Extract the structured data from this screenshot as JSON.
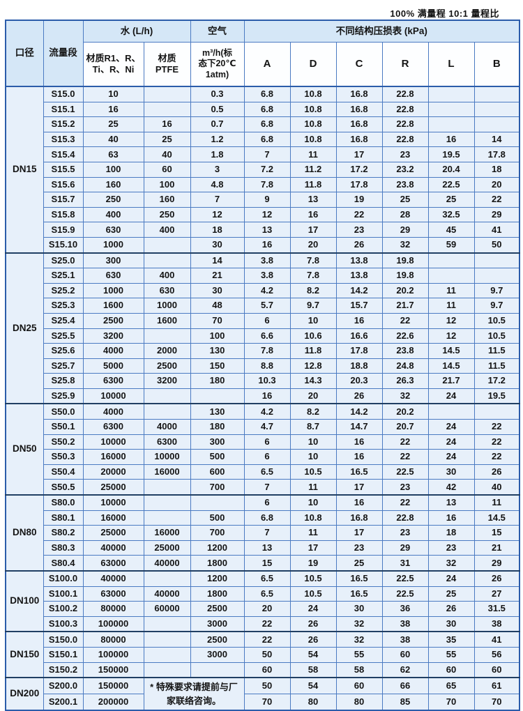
{
  "page": {
    "top_note": "100% 满量程  10:1 量程比"
  },
  "table": {
    "headers": {
      "diameter": "口径",
      "flow_segment": "流量段",
      "water_group": "水 (L/h)",
      "water_material_1": "材质R1、R、\nTi、R、Ni",
      "water_material_2": "材质\nPTFE",
      "air_group": "空气",
      "air_sub": "m³/h(标\n态下20℃\n1atm)",
      "pressure_group": "不同结构压损表  (kPa)",
      "pressure_cols": [
        "A",
        "D",
        "C",
        "R",
        "L",
        "B"
      ]
    },
    "note": "* 特殊要求请提前与厂家联络咨询。",
    "groups": [
      {
        "diameter": "DN15",
        "rows": [
          {
            "seg": "S15.0",
            "w1": "10",
            "w2": "",
            "air": "0.3",
            "kpa": [
              "6.8",
              "10.8",
              "16.8",
              "22.8",
              "",
              ""
            ]
          },
          {
            "seg": "S15.1",
            "w1": "16",
            "w2": "",
            "air": "0.5",
            "kpa": [
              "6.8",
              "10.8",
              "16.8",
              "22.8",
              "",
              ""
            ]
          },
          {
            "seg": "S15.2",
            "w1": "25",
            "w2": "16",
            "air": "0.7",
            "kpa": [
              "6.8",
              "10.8",
              "16.8",
              "22.8",
              "",
              ""
            ]
          },
          {
            "seg": "S15.3",
            "w1": "40",
            "w2": "25",
            "air": "1.2",
            "kpa": [
              "6.8",
              "10.8",
              "16.8",
              "22.8",
              "16",
              "14"
            ]
          },
          {
            "seg": "S15.4",
            "w1": "63",
            "w2": "40",
            "air": "1.8",
            "kpa": [
              "7",
              "11",
              "17",
              "23",
              "19.5",
              "17.8"
            ]
          },
          {
            "seg": "S15.5",
            "w1": "100",
            "w2": "60",
            "air": "3",
            "kpa": [
              "7.2",
              "11.2",
              "17.2",
              "23.2",
              "20.4",
              "18"
            ]
          },
          {
            "seg": "S15.6",
            "w1": "160",
            "w2": "100",
            "air": "4.8",
            "kpa": [
              "7.8",
              "11.8",
              "17.8",
              "23.8",
              "22.5",
              "20"
            ]
          },
          {
            "seg": "S15.7",
            "w1": "250",
            "w2": "160",
            "air": "7",
            "kpa": [
              "9",
              "13",
              "19",
              "25",
              "25",
              "22"
            ]
          },
          {
            "seg": "S15.8",
            "w1": "400",
            "w2": "250",
            "air": "12",
            "kpa": [
              "12",
              "16",
              "22",
              "28",
              "32.5",
              "29"
            ]
          },
          {
            "seg": "S15.9",
            "w1": "630",
            "w2": "400",
            "air": "18",
            "kpa": [
              "13",
              "17",
              "23",
              "29",
              "45",
              "41"
            ]
          },
          {
            "seg": "S15.10",
            "w1": "1000",
            "w2": "",
            "air": "30",
            "kpa": [
              "16",
              "20",
              "26",
              "32",
              "59",
              "50"
            ]
          }
        ]
      },
      {
        "diameter": "DN25",
        "rows": [
          {
            "seg": "S25.0",
            "w1": "300",
            "w2": "",
            "air": "14",
            "kpa": [
              "3.8",
              "7.8",
              "13.8",
              "19.8",
              "",
              ""
            ]
          },
          {
            "seg": "S25.1",
            "w1": "630",
            "w2": "400",
            "air": "21",
            "kpa": [
              "3.8",
              "7.8",
              "13.8",
              "19.8",
              "",
              ""
            ]
          },
          {
            "seg": "S25.2",
            "w1": "1000",
            "w2": "630",
            "air": "30",
            "kpa": [
              "4.2",
              "8.2",
              "14.2",
              "20.2",
              "11",
              "9.7"
            ]
          },
          {
            "seg": "S25.3",
            "w1": "1600",
            "w2": "1000",
            "air": "48",
            "kpa": [
              "5.7",
              "9.7",
              "15.7",
              "21.7",
              "11",
              "9.7"
            ]
          },
          {
            "seg": "S25.4",
            "w1": "2500",
            "w2": "1600",
            "air": "70",
            "kpa": [
              "6",
              "10",
              "16",
              "22",
              "12",
              "10.5"
            ]
          },
          {
            "seg": "S25.5",
            "w1": "3200",
            "w2": "",
            "air": "100",
            "kpa": [
              "6.6",
              "10.6",
              "16.6",
              "22.6",
              "12",
              "10.5"
            ]
          },
          {
            "seg": "S25.6",
            "w1": "4000",
            "w2": "2000",
            "air": "130",
            "kpa": [
              "7.8",
              "11.8",
              "17.8",
              "23.8",
              "14.5",
              "11.5"
            ]
          },
          {
            "seg": "S25.7",
            "w1": "5000",
            "w2": "2500",
            "air": "150",
            "kpa": [
              "8.8",
              "12.8",
              "18.8",
              "24.8",
              "14.5",
              "11.5"
            ]
          },
          {
            "seg": "S25.8",
            "w1": "6300",
            "w2": "3200",
            "air": "180",
            "kpa": [
              "10.3",
              "14.3",
              "20.3",
              "26.3",
              "21.7",
              "17.2"
            ]
          },
          {
            "seg": "S25.9",
            "w1": "10000",
            "w2": "",
            "air": "",
            "kpa": [
              "16",
              "20",
              "26",
              "32",
              "24",
              "19.5"
            ]
          }
        ]
      },
      {
        "diameter": "DN50",
        "rows": [
          {
            "seg": "S50.0",
            "w1": "4000",
            "w2": "",
            "air": "130",
            "kpa": [
              "4.2",
              "8.2",
              "14.2",
              "20.2",
              "",
              ""
            ]
          },
          {
            "seg": "S50.1",
            "w1": "6300",
            "w2": "4000",
            "air": "180",
            "kpa": [
              "4.7",
              "8.7",
              "14.7",
              "20.7",
              "24",
              "22"
            ]
          },
          {
            "seg": "S50.2",
            "w1": "10000",
            "w2": "6300",
            "air": "300",
            "kpa": [
              "6",
              "10",
              "16",
              "22",
              "24",
              "22"
            ]
          },
          {
            "seg": "S50.3",
            "w1": "16000",
            "w2": "10000",
            "air": "500",
            "kpa": [
              "6",
              "10",
              "16",
              "22",
              "24",
              "22"
            ]
          },
          {
            "seg": "S50.4",
            "w1": "20000",
            "w2": "16000",
            "air": "600",
            "kpa": [
              "6.5",
              "10.5",
              "16.5",
              "22.5",
              "30",
              "26"
            ]
          },
          {
            "seg": "S50.5",
            "w1": "25000",
            "w2": "",
            "air": "700",
            "kpa": [
              "7",
              "11",
              "17",
              "23",
              "42",
              "40"
            ]
          }
        ]
      },
      {
        "diameter": "DN80",
        "rows": [
          {
            "seg": "S80.0",
            "w1": "10000",
            "w2": "",
            "air": "",
            "kpa": [
              "6",
              "10",
              "16",
              "22",
              "13",
              "11"
            ]
          },
          {
            "seg": "S80.1",
            "w1": "16000",
            "w2": "",
            "air": "500",
            "kpa": [
              "6.8",
              "10.8",
              "16.8",
              "22.8",
              "16",
              "14.5"
            ]
          },
          {
            "seg": "S80.2",
            "w1": "25000",
            "w2": "16000",
            "air": "700",
            "kpa": [
              "7",
              "11",
              "17",
              "23",
              "18",
              "15"
            ]
          },
          {
            "seg": "S80.3",
            "w1": "40000",
            "w2": "25000",
            "air": "1200",
            "kpa": [
              "13",
              "17",
              "23",
              "29",
              "23",
              "21"
            ]
          },
          {
            "seg": "S80.4",
            "w1": "63000",
            "w2": "40000",
            "air": "1800",
            "kpa": [
              "15",
              "19",
              "25",
              "31",
              "32",
              "29"
            ]
          }
        ]
      },
      {
        "diameter": "DN100",
        "rows": [
          {
            "seg": "S100.0",
            "w1": "40000",
            "w2": "",
            "air": "1200",
            "kpa": [
              "6.5",
              "10.5",
              "16.5",
              "22.5",
              "24",
              "26"
            ]
          },
          {
            "seg": "S100.1",
            "w1": "63000",
            "w2": "40000",
            "air": "1800",
            "kpa": [
              "6.5",
              "10.5",
              "16.5",
              "22.5",
              "25",
              "27"
            ]
          },
          {
            "seg": "S100.2",
            "w1": "80000",
            "w2": "60000",
            "air": "2500",
            "kpa": [
              "20",
              "24",
              "30",
              "36",
              "26",
              "31.5"
            ]
          },
          {
            "seg": "S100.3",
            "w1": "100000",
            "w2": "",
            "air": "3000",
            "kpa": [
              "22",
              "26",
              "32",
              "38",
              "30",
              "38"
            ]
          }
        ]
      },
      {
        "diameter": "DN150",
        "rows": [
          {
            "seg": "S150.0",
            "w1": "80000",
            "w2": "",
            "air": "2500",
            "kpa": [
              "22",
              "26",
              "32",
              "38",
              "35",
              "41"
            ]
          },
          {
            "seg": "S150.1",
            "w1": "100000",
            "w2": "",
            "air": "3000",
            "kpa": [
              "50",
              "54",
              "55",
              "60",
              "55",
              "56"
            ]
          },
          {
            "seg": "S150.2",
            "w1": "150000",
            "w2": "",
            "air": "",
            "kpa": [
              "60",
              "58",
              "58",
              "62",
              "60",
              "60"
            ]
          }
        ]
      },
      {
        "diameter": "DN200",
        "has_note": true,
        "rows": [
          {
            "seg": "S200.0",
            "w1": "150000",
            "kpa": [
              "50",
              "54",
              "60",
              "66",
              "65",
              "61"
            ]
          },
          {
            "seg": "S200.1",
            "w1": "200000",
            "kpa": [
              "70",
              "80",
              "80",
              "85",
              "70",
              "70"
            ]
          }
        ]
      }
    ]
  }
}
